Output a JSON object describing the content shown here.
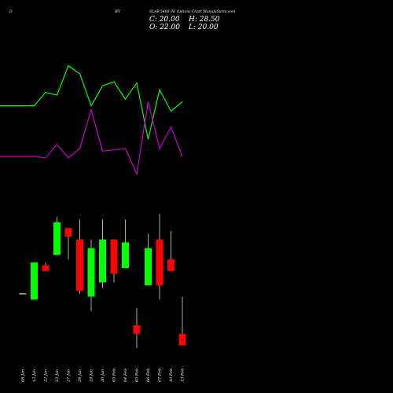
{
  "header": {
    "left_code": "D",
    "mid_code": "IFI",
    "title": "SLAB 5400 PE Options  Chart MunafaSutra.com"
  },
  "ohlc": {
    "open_label": "O: 22.00",
    "high_label": "H: 28.50",
    "close_label": "C: 20.00",
    "low_label": "L: 20.00"
  },
  "colors": {
    "background": "#000000",
    "up": "#00ff00",
    "down": "#ff0000",
    "line_green": "#00ff00",
    "line_magenta": "#cc00cc",
    "text": "#ffffff",
    "flat": "#ffffff"
  },
  "chart_data": {
    "type": "candlestick",
    "title": "SLAB 5400 PE Options  Chart MunafaSutra.com",
    "categories": [
      "08 Jan",
      "13 Jan",
      "22 Jan",
      "23 Jan",
      "27 Jan",
      "28 Jan",
      "29 Jan",
      "30 Jan",
      "03 Feb",
      "04 Feb",
      "05 Feb",
      "06 Feb",
      "07 Feb",
      "10 Feb",
      "13 Feb"
    ],
    "candles": [
      {
        "date": "08 Jan",
        "open": 29.0,
        "high": 29.0,
        "low": 29.0,
        "close": 29.0
      },
      {
        "date": "13 Jan",
        "open": 28.0,
        "high": 34.5,
        "low": 28.0,
        "close": 34.5
      },
      {
        "date": "22 Jan",
        "open": 34.0,
        "high": 34.5,
        "low": 33.0,
        "close": 33.0
      },
      {
        "date": "23 Jan",
        "open": 35.8,
        "high": 42.5,
        "low": 35.8,
        "close": 41.5
      },
      {
        "date": "27 Jan",
        "open": 40.5,
        "high": 40.5,
        "low": 35.0,
        "close": 39.0
      },
      {
        "date": "28 Jan",
        "open": 38.5,
        "high": 42.0,
        "low": 29.0,
        "close": 29.5
      },
      {
        "date": "29 Jan",
        "open": 28.5,
        "high": 38.5,
        "low": 26.0,
        "close": 37.0
      },
      {
        "date": "30 Jan",
        "open": 31.0,
        "high": 42.0,
        "low": 30.0,
        "close": 38.5
      },
      {
        "date": "03 Feb",
        "open": 38.5,
        "high": 38.5,
        "low": 31.0,
        "close": 32.5
      },
      {
        "date": "04 Feb",
        "open": 33.5,
        "high": 42.0,
        "low": 33.5,
        "close": 38.0
      },
      {
        "date": "05 Feb",
        "open": 23.5,
        "high": 26.5,
        "low": 19.5,
        "close": 22.0
      },
      {
        "date": "06 Feb",
        "open": 30.5,
        "high": 39.5,
        "low": 30.5,
        "close": 37.0
      },
      {
        "date": "07 Feb",
        "open": 38.5,
        "high": 43.0,
        "low": 28.0,
        "close": 30.5
      },
      {
        "date": "10 Feb",
        "open": 35.0,
        "high": 40.0,
        "low": 33.0,
        "close": 33.0
      },
      {
        "date": "13 Feb",
        "open": 22.0,
        "high": 28.5,
        "low": 20.0,
        "close": 20.0
      }
    ],
    "lines": [
      {
        "color": "green",
        "values": [
          62,
          62,
          72,
          70,
          92,
          86,
          62,
          77,
          80,
          67,
          79,
          37,
          74,
          58,
          65
        ]
      },
      {
        "color": "magenta",
        "values": [
          24,
          24,
          23,
          33,
          23,
          30,
          59,
          28,
          29,
          30,
          11,
          65,
          30,
          46,
          24
        ]
      }
    ],
    "grid": false,
    "legend": "none"
  }
}
